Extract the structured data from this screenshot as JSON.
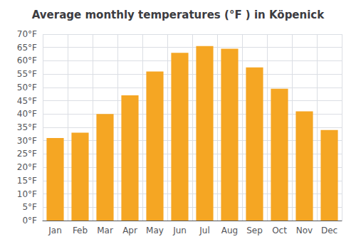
{
  "chart_data": {
    "type": "bar",
    "title": "Average monthly temperatures (°F ) in Köpenick",
    "categories": [
      "Jan",
      "Feb",
      "Mar",
      "Apr",
      "May",
      "Jun",
      "Jul",
      "Aug",
      "Sep",
      "Oct",
      "Nov",
      "Dec"
    ],
    "values": [
      31,
      33,
      40,
      47,
      56,
      63,
      65.5,
      64.5,
      57.5,
      49.5,
      41,
      34
    ],
    "color": "#F5A623",
    "ylim": [
      0,
      70
    ],
    "yticks": [
      {
        "value": 0,
        "label": "0°F"
      },
      {
        "value": 5,
        "label": "5°F"
      },
      {
        "value": 10,
        "label": "10°F"
      },
      {
        "value": 15,
        "label": "15°F"
      },
      {
        "value": 20,
        "label": "20°F"
      },
      {
        "value": 25,
        "label": "25°F"
      },
      {
        "value": 30,
        "label": "30°F"
      },
      {
        "value": 35,
        "label": "35°F"
      },
      {
        "value": 40,
        "label": "40°F"
      },
      {
        "value": 45,
        "label": "45°F"
      },
      {
        "value": 50,
        "label": "50°F"
      },
      {
        "value": 55,
        "label": "55°F"
      },
      {
        "value": 60,
        "label": "60°F"
      },
      {
        "value": 65,
        "label": "65°F"
      },
      {
        "value": 70,
        "label": "70°F"
      }
    ],
    "grid": true
  }
}
